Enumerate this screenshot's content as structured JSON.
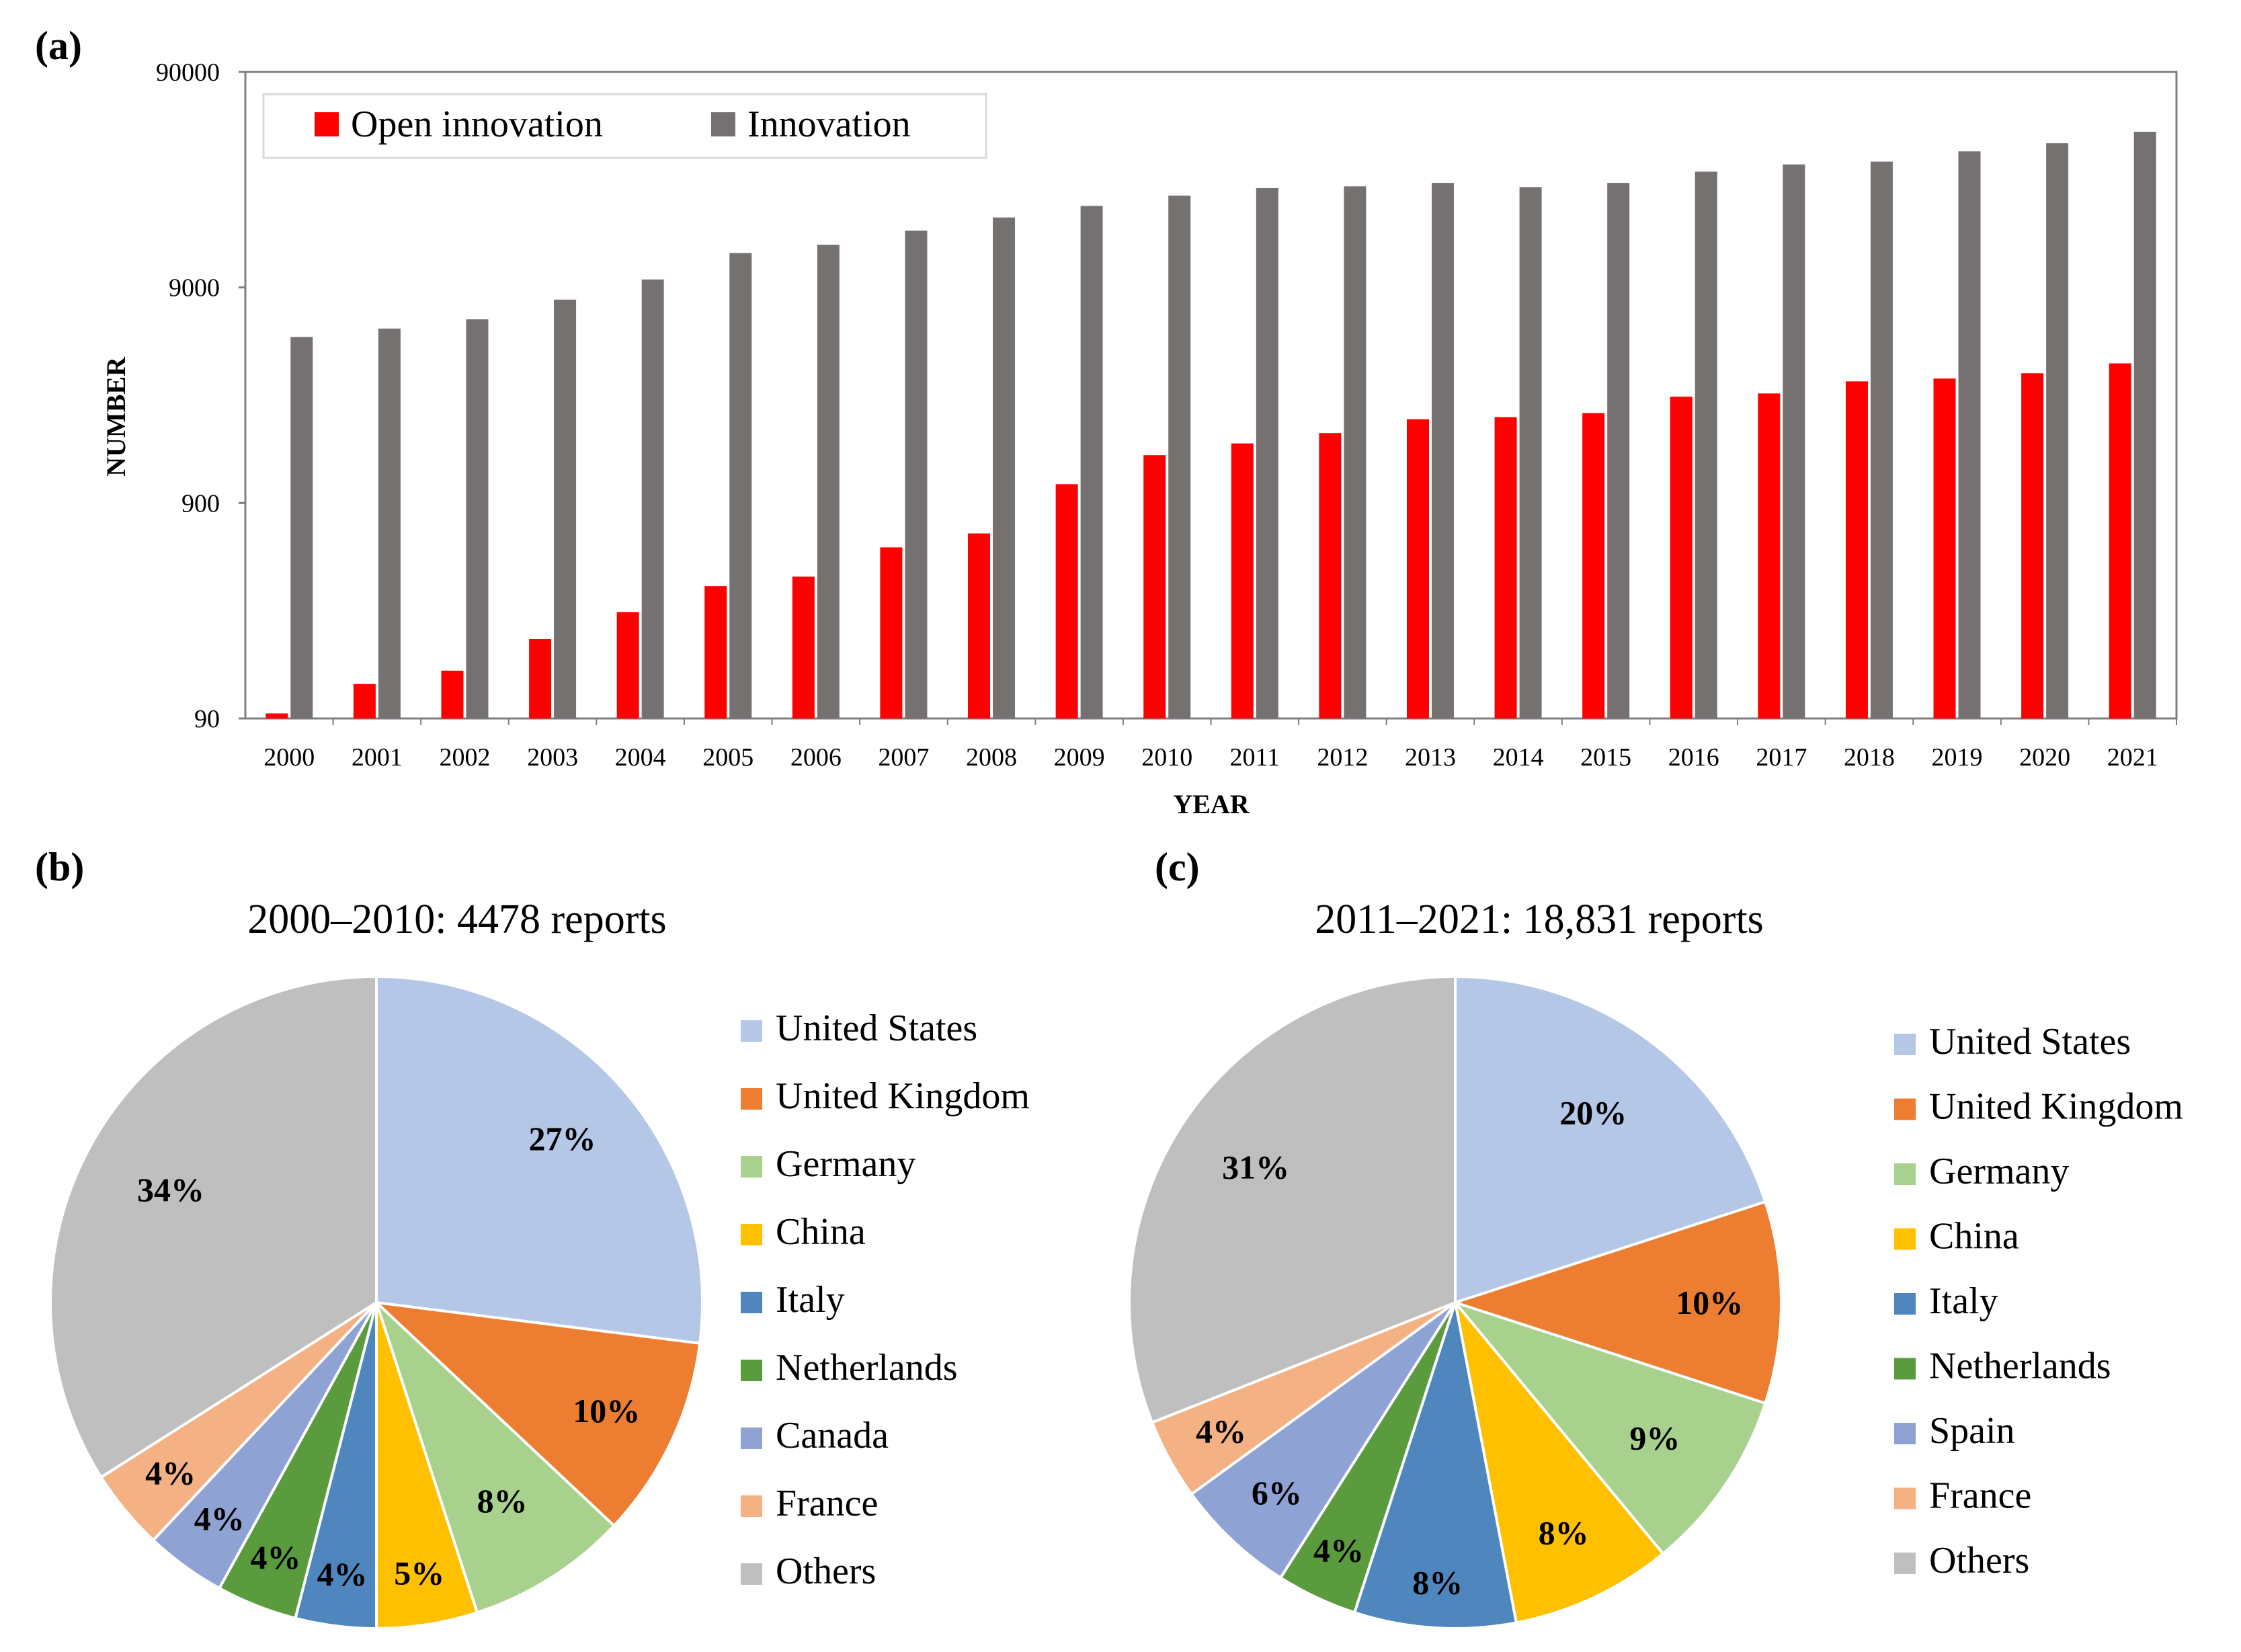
{
  "chart_data": [
    {
      "panel": "(a)",
      "type": "bar",
      "title": "",
      "xlabel": "YEAR",
      "ylabel": "NUMBER",
      "yscale": "log",
      "ylim": [
        90,
        90000
      ],
      "yticks": [
        90,
        900,
        9000,
        90000
      ],
      "grid": false,
      "legend_position": "top-left",
      "categories": [
        "2000",
        "2001",
        "2002",
        "2003",
        "2004",
        "2005",
        "2006",
        "2007",
        "2008",
        "2009",
        "2010",
        "2011",
        "2012",
        "2013",
        "2014",
        "2015",
        "2016",
        "2017",
        "2018",
        "2019",
        "2020",
        "2021"
      ],
      "series": [
        {
          "name": "Open innovation",
          "color": "#ff0000",
          "values": [
            95,
            130,
            150,
            210,
            280,
            370,
            410,
            560,
            650,
            1100,
            1500,
            1700,
            1900,
            2200,
            2250,
            2350,
            2800,
            2900,
            3300,
            3400,
            3600,
            4000
          ]
        },
        {
          "name": "Innovation",
          "color": "#767171",
          "values": [
            5300,
            5800,
            6400,
            7900,
            9800,
            13000,
            14200,
            16500,
            19000,
            21500,
            24000,
            26000,
            26500,
            27500,
            26300,
            27500,
            31000,
            33500,
            34500,
            38500,
            42000,
            47500
          ]
        }
      ]
    },
    {
      "panel": "(b)",
      "type": "pie",
      "title": "2000–2010: 4478 reports",
      "legend_position": "right",
      "labels": [
        "United States",
        "United Kingdom",
        "Germany",
        "China",
        "Italy",
        "Netherlands",
        "Canada",
        "France",
        "Others"
      ],
      "values": [
        27,
        10,
        8,
        5,
        4,
        4,
        4,
        4,
        34
      ],
      "value_labels": [
        "27%",
        "10%",
        "8%",
        "5%",
        "4%",
        "4%",
        "4%",
        "4%",
        "34%"
      ],
      "colors": [
        "#b4c7e7",
        "#ed7d31",
        "#a9d18e",
        "#ffc000",
        "#4e86bd",
        "#5a9b3e",
        "#8fa2d4",
        "#f4b183",
        "#bfbfbf"
      ]
    },
    {
      "panel": "(c)",
      "type": "pie",
      "title": "2011–2021: 18,831 reports",
      "legend_position": "right",
      "labels": [
        "United States",
        "United Kingdom",
        "Germany",
        "China",
        "Italy",
        "Netherlands",
        "Spain",
        "France",
        "Others"
      ],
      "values": [
        20,
        10,
        9,
        8,
        8,
        4,
        6,
        4,
        31
      ],
      "value_labels": [
        "20%",
        "10%",
        "9%",
        "8%",
        "8%",
        "4%",
        "6%",
        "4%",
        "31%"
      ],
      "colors": [
        "#b4c7e7",
        "#ed7d31",
        "#a9d18e",
        "#ffc000",
        "#4e86bd",
        "#5a9b3e",
        "#8fa2d4",
        "#f4b183",
        "#bfbfbf"
      ]
    }
  ]
}
